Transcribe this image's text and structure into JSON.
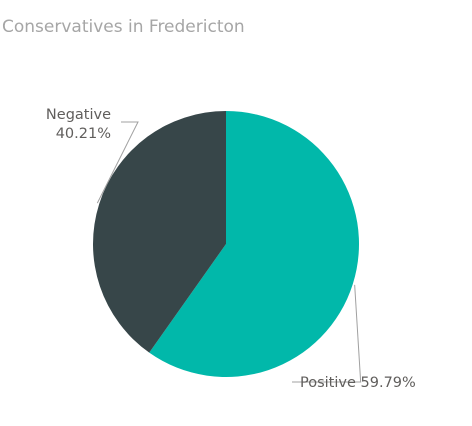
{
  "chart_data": {
    "type": "pie",
    "title": "Conservatives in Fredericton",
    "slices": [
      {
        "name": "Positive",
        "value": 59.79,
        "label": "Positive 59.79%",
        "color": "#01b8aa"
      },
      {
        "name": "Negative",
        "value": 40.21,
        "label_lines": [
          "Negative",
          "40.21%"
        ],
        "color": "#374649"
      }
    ],
    "start_angle_deg": 0,
    "direction": "clockwise",
    "legend": "none"
  }
}
